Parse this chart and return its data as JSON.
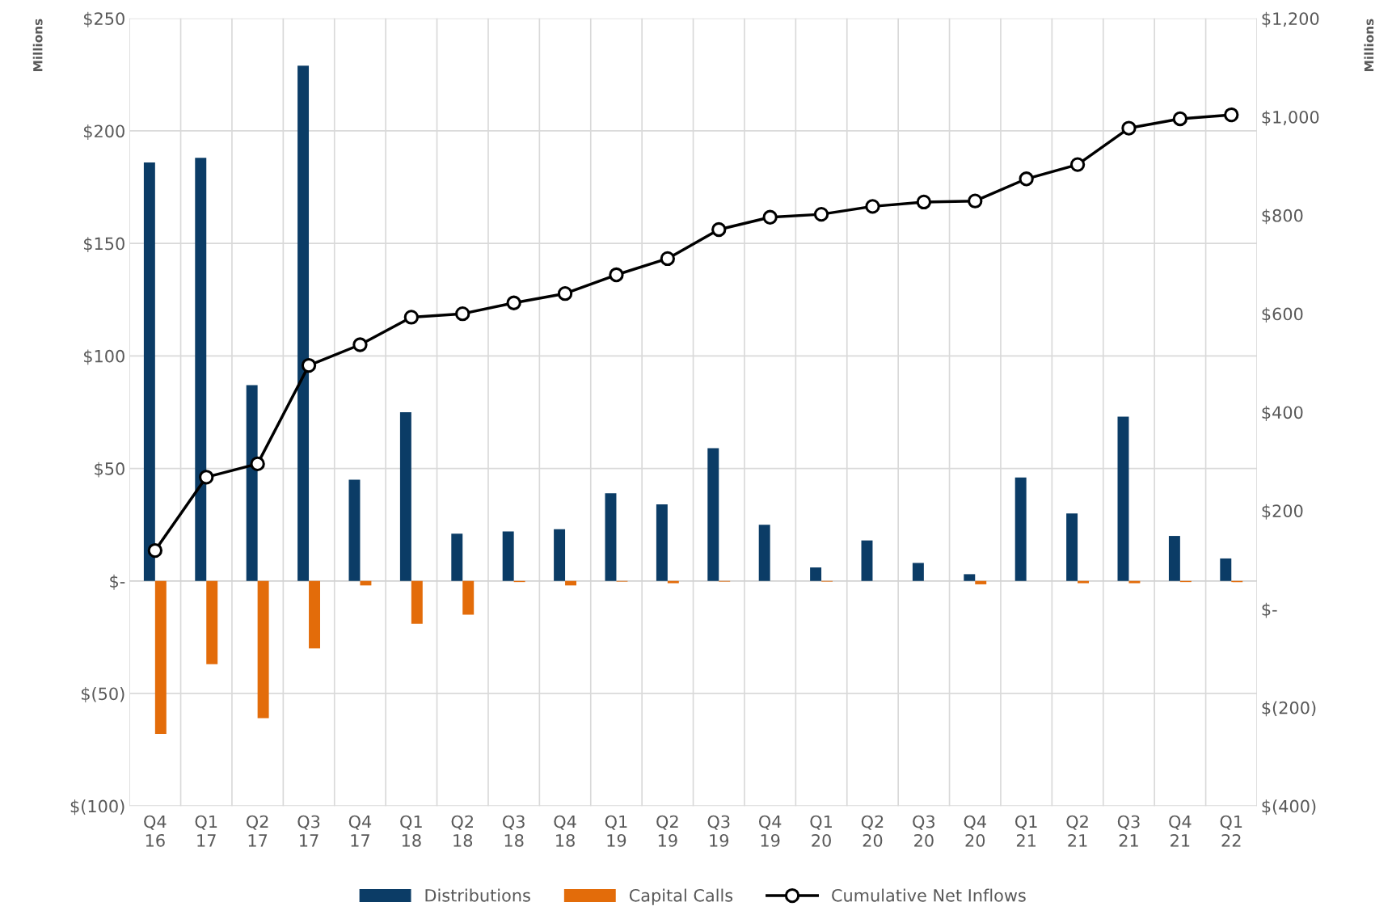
{
  "chart_data": {
    "type": "bar",
    "ylabel": "Millions",
    "y2label": "Millions",
    "categories": [
      "Q4\n16",
      "Q1\n17",
      "Q2\n17",
      "Q3\n17",
      "Q4\n17",
      "Q1\n18",
      "Q2\n18",
      "Q3\n18",
      "Q4\n18",
      "Q1\n19",
      "Q2\n19",
      "Q3\n19",
      "Q4\n19",
      "Q1\n20",
      "Q2\n20",
      "Q3\n20",
      "Q4\n20",
      "Q1\n21",
      "Q2\n21",
      "Q3\n21",
      "Q4\n21",
      "Q1\n22"
    ],
    "series": [
      {
        "name": "Distributions",
        "color": "#0b3c66",
        "values": [
          186,
          188,
          87,
          229,
          45,
          75,
          21,
          22,
          23,
          39,
          34,
          59,
          25,
          6,
          18,
          8,
          3,
          46,
          30,
          73,
          20,
          10
        ]
      },
      {
        "name": "Capital Calls",
        "color": "#e36c0a",
        "values": [
          -68,
          -37,
          -61,
          -30,
          -2,
          -19,
          -15,
          -0.5,
          -2,
          -0.3,
          -1,
          -0.3,
          0,
          -0.3,
          0,
          0,
          -1.5,
          0,
          -1,
          -1,
          -0.5,
          -0.5
        ]
      },
      {
        "name": "Cumulative Net Inflows",
        "type": "line",
        "axis": "y2",
        "color": "#000000",
        "marker": "circle",
        "values": [
          119,
          268,
          295,
          495,
          537,
          593,
          600,
          622,
          641,
          679,
          712,
          771,
          796,
          802,
          818,
          827,
          829,
          874,
          903,
          977,
          996,
          1004
        ]
      }
    ],
    "ylim": [
      -100,
      250
    ],
    "yticks": [
      {
        "value": -100,
        "label": "$(100)"
      },
      {
        "value": -50,
        "label": "$(50)"
      },
      {
        "value": 0,
        "label": "$-"
      },
      {
        "value": 50,
        "label": "$50"
      },
      {
        "value": 100,
        "label": "$100"
      },
      {
        "value": 150,
        "label": "$150"
      },
      {
        "value": 200,
        "label": "$200"
      },
      {
        "value": 250,
        "label": "$250"
      }
    ],
    "y2lim": [
      -400,
      1200
    ],
    "y2ticks": [
      {
        "value": -400,
        "label": "$(400)"
      },
      {
        "value": -200,
        "label": "$(200)"
      },
      {
        "value": 0,
        "label": "$-"
      },
      {
        "value": 200,
        "label": "$200"
      },
      {
        "value": 400,
        "label": "$400"
      },
      {
        "value": 600,
        "label": "$600"
      },
      {
        "value": 800,
        "label": "$800"
      },
      {
        "value": 1000,
        "label": "$1,000"
      },
      {
        "value": 1200,
        "label": "$1,200"
      }
    ],
    "grid": true,
    "legend": "bottom"
  }
}
